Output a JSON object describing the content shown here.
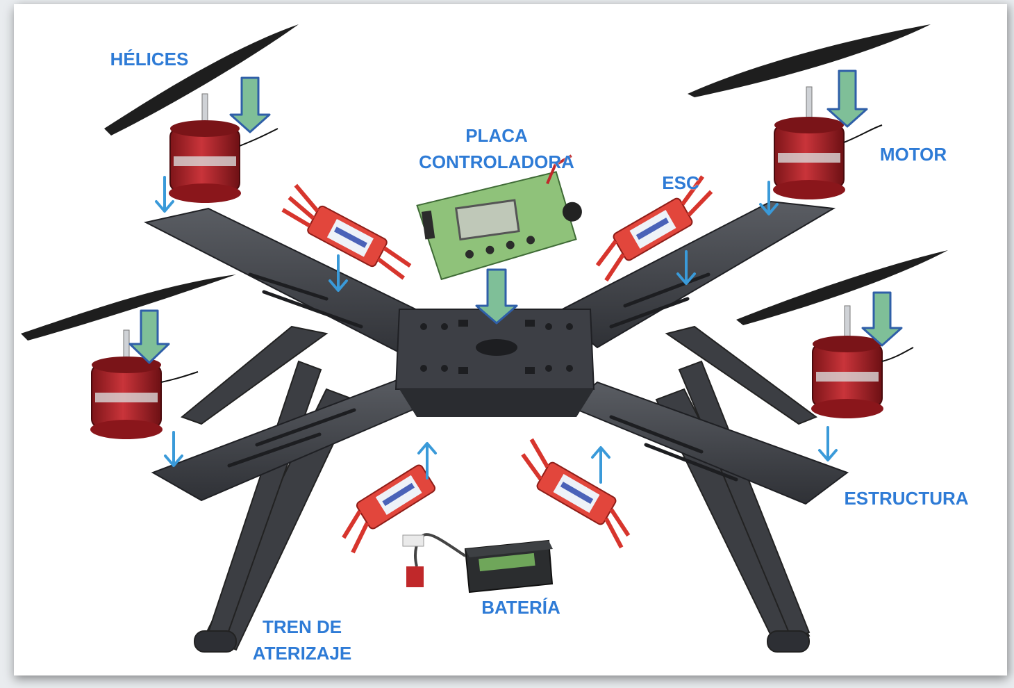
{
  "labels": {
    "helices": "HÉLICES",
    "placa_line1": "PLACA",
    "placa_line2": "CONTROLADORA",
    "esc": "ESC",
    "motor": "MOTOR",
    "estructura": "ESTRUCTURA",
    "bateria": "BATERÍA",
    "tren_line1": "TREN DE",
    "tren_line2": "ATERIZAJE"
  },
  "colors": {
    "label_text": "#2e7bd6",
    "big_arrow_fill": "#7fbf98",
    "big_arrow_stroke": "#2f5fa8",
    "small_arrow": "#3a9ad9",
    "frame": "#4a4c52",
    "frame_dark": "#2d2f34",
    "motor_red": "#b3262c",
    "esc_red": "#e2463c",
    "board_green": "#8fc27a",
    "battery": "#2b2d2f",
    "propeller": "#1e1e1e"
  },
  "icons": [
    "propeller-icon",
    "motor-icon",
    "esc-icon",
    "controller-board-icon",
    "battery-icon",
    "frame-icon",
    "landing-gear-icon"
  ]
}
